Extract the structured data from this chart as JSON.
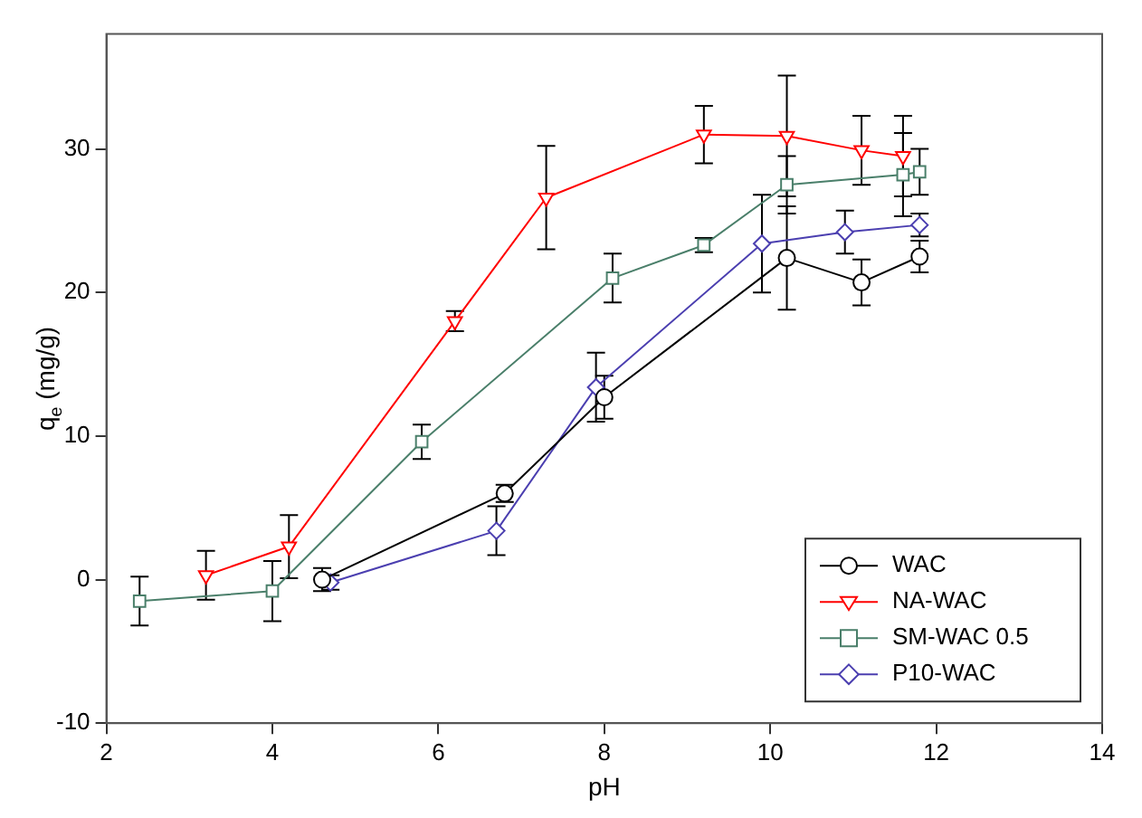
{
  "chart_data": {
    "type": "line",
    "xlabel": "pH",
    "ylabel": "q$_{e}$ (mg/g)",
    "xlim": [
      2,
      14
    ],
    "xticks": [
      2,
      4,
      6,
      8,
      10,
      12,
      14
    ],
    "ylim": [
      -10,
      38
    ],
    "yticks": [
      -10,
      0,
      10,
      20,
      30
    ],
    "grid": false,
    "legend": "bottom right",
    "series": [
      {
        "name": "WAC",
        "color": "#000000",
        "marker": "circle",
        "x": [
          4.6,
          6.8,
          8.0,
          10.2,
          11.1,
          11.8
        ],
        "values": [
          0,
          6,
          12.7,
          22.4,
          20.7,
          22.5
        ],
        "errors": [
          0.8,
          0.6,
          1.5,
          3.6,
          1.6,
          1.1
        ]
      },
      {
        "name": "NA-WAC",
        "color": "#ff0000",
        "marker": "triangle",
        "x": [
          3.2,
          4.2,
          6.2,
          7.3,
          9.2,
          10.2,
          11.1,
          11.6
        ],
        "values": [
          0.3,
          2.3,
          18,
          26.6,
          31,
          30.9,
          29.9,
          29.5
        ],
        "errors": [
          1.7,
          2.2,
          0.7,
          3.6,
          2,
          4.2,
          2.4,
          2.8
        ]
      },
      {
        "name": "SM-WAC 0.5",
        "color": "#4a7f6a",
        "marker": "square",
        "x": [
          2.4,
          4.0,
          5.8,
          8.1,
          9.2,
          10.2,
          11.6,
          11.8
        ],
        "values": [
          -1.5,
          -0.8,
          9.6,
          21,
          23.3,
          27.5,
          28.2,
          28.4
        ],
        "errors": [
          1.7,
          2.1,
          1.2,
          1.7,
          0.5,
          2,
          2.9,
          1.6
        ]
      },
      {
        "name": "P10-WAC",
        "color": "#4b3fb0",
        "marker": "diamond",
        "x": [
          4.7,
          6.7,
          7.9,
          9.9,
          10.9,
          11.8
        ],
        "values": [
          -0.2,
          3.4,
          13.4,
          23.4,
          24.2,
          24.7
        ],
        "errors": [
          0.5,
          1.7,
          2.4,
          3.4,
          1.5,
          0.8
        ]
      }
    ]
  }
}
